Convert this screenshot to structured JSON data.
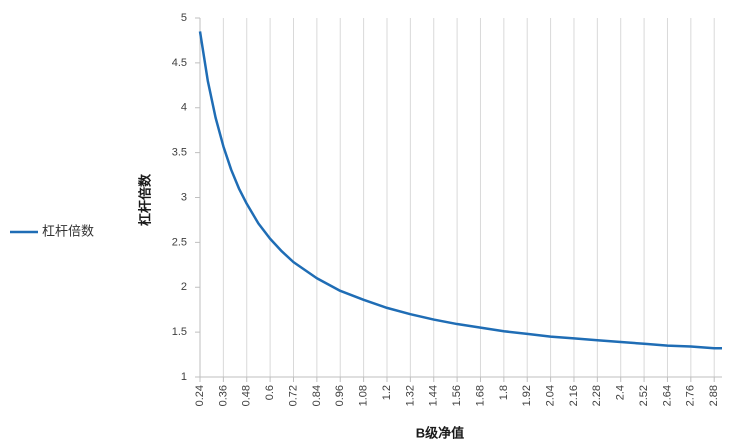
{
  "chart_data": {
    "type": "line",
    "x_label": "B级净值",
    "y_label": "杠杆倍数",
    "x": [
      0.24,
      0.28,
      0.32,
      0.36,
      0.4,
      0.44,
      0.48,
      0.54,
      0.6,
      0.66,
      0.72,
      0.84,
      0.96,
      1.08,
      1.2,
      1.32,
      1.44,
      1.56,
      1.68,
      1.8,
      1.92,
      2.04,
      2.16,
      2.28,
      2.4,
      2.52,
      2.64,
      2.76,
      2.88,
      2.92
    ],
    "series": [
      {
        "name": "杠杆倍数",
        "color": "#1f6db5",
        "values": [
          4.85,
          4.3,
          3.89,
          3.57,
          3.31,
          3.1,
          2.93,
          2.71,
          2.54,
          2.4,
          2.28,
          2.1,
          1.96,
          1.86,
          1.77,
          1.7,
          1.64,
          1.59,
          1.55,
          1.51,
          1.48,
          1.45,
          1.43,
          1.41,
          1.39,
          1.37,
          1.35,
          1.34,
          1.32,
          1.32
        ]
      }
    ],
    "xlim": [
      0.24,
      2.92
    ],
    "xticks": [
      0.24,
      0.36,
      0.48,
      0.6,
      0.72,
      0.84,
      0.96,
      1.08,
      1.2,
      1.32,
      1.44,
      1.56,
      1.68,
      1.8,
      1.92,
      2.04,
      2.16,
      2.28,
      2.4,
      2.52,
      2.64,
      2.76,
      2.88
    ],
    "ylim": [
      1,
      5
    ],
    "yticks": [
      1,
      1.5,
      2,
      2.5,
      3,
      3.5,
      4,
      4.5,
      5
    ],
    "grid": "x",
    "legend": "left"
  }
}
